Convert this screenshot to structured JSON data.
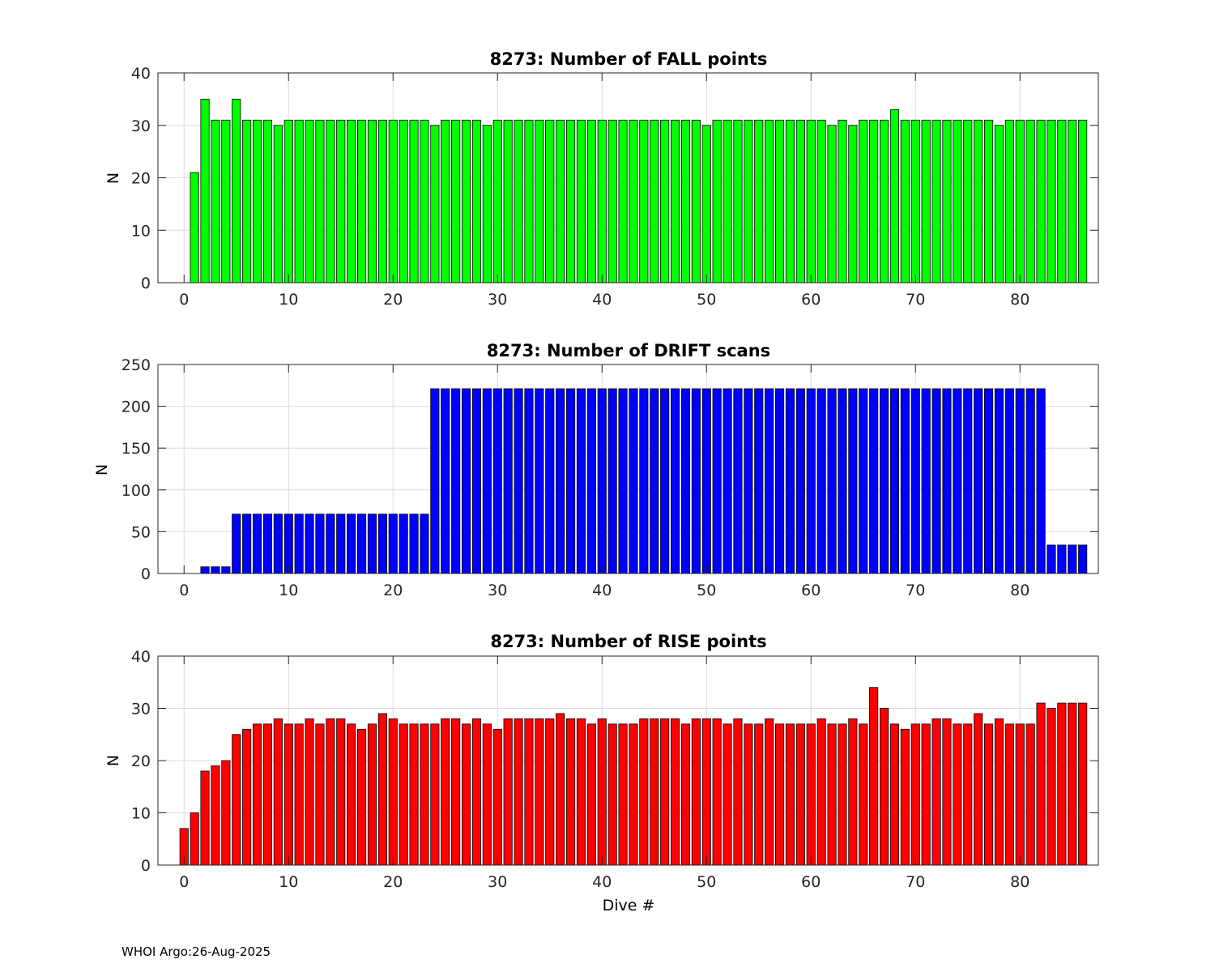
{
  "footer": "WHOI Argo:26-Aug-2025",
  "chart_data": [
    {
      "type": "bar",
      "title": "8273: Number of FALL points",
      "xlabel": "",
      "ylabel": "N",
      "color": "#00ff00",
      "xlim": [
        -2.5,
        87.5
      ],
      "ylim": [
        0,
        40
      ],
      "xticks": [
        0,
        10,
        20,
        30,
        40,
        50,
        60,
        70,
        80
      ],
      "yticks": [
        0,
        10,
        20,
        30,
        40
      ],
      "grid": true,
      "x": [
        0,
        1,
        2,
        3,
        4,
        5,
        6,
        7,
        8,
        9,
        10,
        11,
        12,
        13,
        14,
        15,
        16,
        17,
        18,
        19,
        20,
        21,
        22,
        23,
        24,
        25,
        26,
        27,
        28,
        29,
        30,
        31,
        32,
        33,
        34,
        35,
        36,
        37,
        38,
        39,
        40,
        41,
        42,
        43,
        44,
        45,
        46,
        47,
        48,
        49,
        50,
        51,
        52,
        53,
        54,
        55,
        56,
        57,
        58,
        59,
        60,
        61,
        62,
        63,
        64,
        65,
        66,
        67,
        68,
        69,
        70,
        71,
        72,
        73,
        74,
        75,
        76,
        77,
        78,
        79,
        80,
        81,
        82,
        83,
        84,
        85,
        86
      ],
      "values": [
        0,
        21,
        35,
        31,
        31,
        35,
        31,
        31,
        31,
        30,
        31,
        31,
        31,
        31,
        31,
        31,
        31,
        31,
        31,
        31,
        31,
        31,
        31,
        31,
        30,
        31,
        31,
        31,
        31,
        30,
        31,
        31,
        31,
        31,
        31,
        31,
        31,
        31,
        31,
        31,
        31,
        31,
        31,
        31,
        31,
        31,
        31,
        31,
        31,
        31,
        30,
        31,
        31,
        31,
        31,
        31,
        31,
        31,
        31,
        31,
        31,
        31,
        30,
        31,
        30,
        31,
        31,
        31,
        33,
        31,
        31,
        31,
        31,
        31,
        31,
        31,
        31,
        31,
        30,
        31,
        31,
        31,
        31,
        31,
        31,
        31,
        31
      ]
    },
    {
      "type": "bar",
      "title": "8273: Number of DRIFT scans",
      "xlabel": "",
      "ylabel": "N",
      "color": "#0000ff",
      "xlim": [
        -2.5,
        87.5
      ],
      "ylim": [
        0,
        250
      ],
      "xticks": [
        0,
        10,
        20,
        30,
        40,
        50,
        60,
        70,
        80
      ],
      "yticks": [
        0,
        50,
        100,
        150,
        200,
        250
      ],
      "grid": true,
      "x": [
        -1,
        0,
        1,
        2,
        3,
        4,
        5,
        6,
        7,
        8,
        9,
        10,
        11,
        12,
        13,
        14,
        15,
        16,
        17,
        18,
        19,
        20,
        21,
        22,
        23,
        24,
        25,
        26,
        27,
        28,
        29,
        30,
        31,
        32,
        33,
        34,
        35,
        36,
        37,
        38,
        39,
        40,
        41,
        42,
        43,
        44,
        45,
        46,
        47,
        48,
        49,
        50,
        51,
        52,
        53,
        54,
        55,
        56,
        57,
        58,
        59,
        60,
        61,
        62,
        63,
        64,
        65,
        66,
        67,
        68,
        69,
        70,
        71,
        72,
        73,
        74,
        75,
        76,
        77,
        78,
        79,
        80,
        81,
        82,
        83,
        84,
        85,
        86
      ],
      "values": [
        0,
        0,
        0,
        8,
        8,
        8,
        71,
        71,
        71,
        71,
        71,
        71,
        71,
        71,
        71,
        71,
        71,
        71,
        71,
        71,
        71,
        71,
        71,
        71,
        71,
        221,
        221,
        221,
        221,
        221,
        221,
        221,
        221,
        221,
        221,
        221,
        221,
        221,
        221,
        221,
        221,
        221,
        221,
        221,
        221,
        221,
        221,
        221,
        221,
        221,
        221,
        221,
        221,
        221,
        221,
        221,
        221,
        221,
        221,
        221,
        221,
        221,
        221,
        221,
        221,
        221,
        221,
        221,
        221,
        221,
        221,
        221,
        221,
        221,
        221,
        221,
        221,
        221,
        221,
        221,
        221,
        221,
        221,
        221,
        34,
        34,
        34,
        34
      ]
    },
    {
      "type": "bar",
      "title": "8273: Number of RISE points",
      "xlabel": "Dive #",
      "ylabel": "N",
      "color": "#ff0000",
      "xlim": [
        -2.5,
        87.5
      ],
      "ylim": [
        0,
        40
      ],
      "xticks": [
        0,
        10,
        20,
        30,
        40,
        50,
        60,
        70,
        80
      ],
      "yticks": [
        0,
        10,
        20,
        30,
        40
      ],
      "grid": true,
      "x": [
        0,
        1,
        2,
        3,
        4,
        5,
        6,
        7,
        8,
        9,
        10,
        11,
        12,
        13,
        14,
        15,
        16,
        17,
        18,
        19,
        20,
        21,
        22,
        23,
        24,
        25,
        26,
        27,
        28,
        29,
        30,
        31,
        32,
        33,
        34,
        35,
        36,
        37,
        38,
        39,
        40,
        41,
        42,
        43,
        44,
        45,
        46,
        47,
        48,
        49,
        50,
        51,
        52,
        53,
        54,
        55,
        56,
        57,
        58,
        59,
        60,
        61,
        62,
        63,
        64,
        65,
        66,
        67,
        68,
        69,
        70,
        71,
        72,
        73,
        74,
        75,
        76,
        77,
        78,
        79,
        80,
        81,
        82,
        83,
        84,
        85,
        86
      ],
      "values": [
        7,
        10,
        18,
        19,
        20,
        25,
        26,
        27,
        27,
        28,
        27,
        27,
        28,
        27,
        28,
        28,
        27,
        26,
        27,
        29,
        28,
        27,
        27,
        27,
        27,
        28,
        28,
        27,
        28,
        27,
        26,
        28,
        28,
        28,
        28,
        28,
        29,
        28,
        28,
        27,
        28,
        27,
        27,
        27,
        28,
        28,
        28,
        28,
        27,
        28,
        28,
        28,
        27,
        28,
        27,
        27,
        28,
        27,
        27,
        27,
        27,
        28,
        27,
        27,
        28,
        27,
        34,
        30,
        27,
        26,
        27,
        27,
        28,
        28,
        27,
        27,
        29,
        27,
        28,
        27,
        27,
        27,
        31,
        30,
        31,
        31,
        31
      ]
    }
  ]
}
